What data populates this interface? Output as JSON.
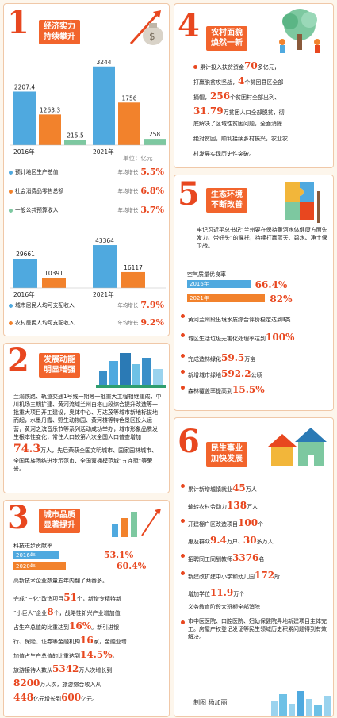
{
  "sections": {
    "s1": {
      "number": "1",
      "title_line1": "经济实力",
      "title_line2": "持续攀升",
      "unit": "单位：亿元",
      "chart_gdp": {
        "type": "bar",
        "categories": [
          "2016年",
          "2021年"
        ],
        "series": [
          {
            "values": [
              2207.4,
              3244
            ],
            "color": "#4fa9df"
          },
          {
            "values": [
              1263.3,
              1756
            ],
            "color": "#f2822c"
          },
          {
            "values": [
              215.5,
              258
            ],
            "color": "#7dc8a0"
          }
        ],
        "labels": [
          [
            "2207.4",
            "1263.3",
            "215.5"
          ],
          [
            "3244",
            "1756",
            "258"
          ]
        ]
      },
      "metrics": [
        {
          "label": "预计地区生产总值",
          "growth": "年均增长",
          "value": "5.5%",
          "color": "#4fa9df"
        },
        {
          "label": "社会消费品零售总额",
          "growth": "年均增长",
          "value": "6.8%",
          "color": "#f2822c"
        },
        {
          "label": "一般公共预算收入",
          "growth": "年均增长",
          "value": "3.7%",
          "color": "#7dc8a0"
        }
      ],
      "chart_income": {
        "type": "bar",
        "categories": [
          "2016年",
          "2021年"
        ],
        "series": [
          {
            "values": [
              29661,
              43364
            ],
            "color": "#4fa9df"
          },
          {
            "values": [
              10391,
              16117
            ],
            "color": "#f2822c"
          }
        ],
        "labels": [
          [
            "29661",
            "10391"
          ],
          [
            "43364",
            "16117"
          ]
        ]
      },
      "metrics2": [
        {
          "label": "城市居民人均可支配收入",
          "growth": "年均增长",
          "value": "7.9%",
          "color": "#4fa9df"
        },
        {
          "label": "农村居民人均可支配收入",
          "growth": "年均增长",
          "value": "9.2%",
          "color": "#f2822c"
        }
      ]
    },
    "s2": {
      "number": "2",
      "title_line1": "发展动能",
      "title_line2": "明显增强",
      "text_a": "兰渝铁路、轨道交通1号线一期等一批重大工程相继建成，中川机场三期扩建、黄河流域兰州白塔山段综合提升改造等一批重大项目开工建设，奥体中心、万达茂等城市新地标拔地而起，水墨丹霞、野生动物园、黄河楼等特色景区投入运营，黄河之滨音乐节等系列活动成功举办，城市形象品质发生根本性变化，常住人口较第六次全国人口普查增加",
      "big": "74.3",
      "text_b": "万人，先后荣获全国文明城市、国家园林城市、全国民族团结进步示范市、全国双拥模范城“五连冠”等荣誉。"
    },
    "s3": {
      "number": "3",
      "title_line1": "城市品质",
      "title_line2": "显著提升",
      "bar_title": "科技进步贡献率",
      "bars": [
        {
          "year": "2016年",
          "value": "53.1%",
          "pct": 53.1,
          "color": "#4fa9df"
        },
        {
          "year": "2020年",
          "value": "60.4%",
          "pct": 60.4,
          "color": "#f2822c"
        }
      ],
      "lines": [
        [
          "高新技术企业数量五年内翻了两番多。"
        ],
        [
          "完成“三化”改造项目",
          "51",
          "个，新增专精特新"
        ],
        [
          "“小巨人”企业",
          "8",
          "个，战略性新兴产业增加值"
        ],
        [
          "占生产总值的比重达到",
          "16%",
          "。新引进银"
        ],
        [
          "行、保险、证券等金融机构",
          "16",
          "家，金融业增"
        ],
        [
          "加值占生产总值的比重达到",
          "14.5%",
          "。"
        ],
        [
          "旅游接待人数从",
          "5342",
          "万人次增长到"
        ],
        [
          "",
          "8200",
          "万人次，旅游综合收入从"
        ],
        [
          "",
          "448",
          "亿元增长到",
          "600",
          "亿元。"
        ]
      ]
    },
    "s4": {
      "number": "4",
      "title_line1": "农村面貌",
      "title_line2": "焕然一新",
      "lines": [
        [
          "累计投入扶贫资金",
          "70",
          "多亿元，"
        ],
        [
          "打赢脱贫攻坚战，",
          "4",
          "个贫困县区全部"
        ],
        [
          "摘帽，",
          "256",
          "个贫困村全部出列、"
        ],
        [
          "",
          "31.79",
          "万贫困人口全部脱贫，彻"
        ],
        [
          "底解决了区域性贫困问题，全面消除"
        ],
        [
          "绝对贫困，顺利接续乡村振兴，农业农"
        ],
        [
          "村发展实现历史性突破。"
        ]
      ]
    },
    "s5": {
      "number": "5",
      "title_line1": "生态环境",
      "title_line2": "不断改善",
      "intro": "牢记习近平总书记“兰州要在保持黄河水体健康方面先发力、带好头”的嘱托，持续打赢蓝天、碧水、净土保卫战。",
      "air_title": "空气质量优良率",
      "air": [
        {
          "year": "2016年",
          "value": "66.4%",
          "pct": 66.4,
          "color": "#4fa9df"
        },
        {
          "year": "2021年",
          "value": "82%",
          "pct": 82,
          "color": "#f2822c"
        }
      ],
      "items": [
        [
          "黄河兰州段出境水质综合评价",
          "",
          "稳定达到Ⅱ类"
        ],
        [
          "城区生活垃圾无害化处理率",
          "",
          "达到",
          "100%"
        ],
        [
          "完成造林绿化",
          "59.5",
          "万亩"
        ],
        [
          "新增城市绿地",
          "592.2",
          "公顷"
        ],
        [
          "森林覆盖率提高到",
          "15.5%"
        ]
      ]
    },
    "s6": {
      "number": "6",
      "title_line1": "民生事业",
      "title_line2": "加快发展",
      "items": [
        [
          "累计新增城镇就业",
          "45",
          "万人"
        ],
        [
          "输转农村劳动力",
          "138",
          "万人"
        ],
        [
          "开建棚户区改造项目",
          "100",
          "个"
        ],
        [
          "惠及群众",
          "9.4",
          "万户、",
          "30",
          "多万人"
        ],
        [
          "招聘同工同酬教师",
          "3376",
          "名"
        ],
        [
          "新建改扩建中小学和幼儿园",
          "172",
          "所"
        ],
        [
          "增加学位",
          "11.9",
          "万个"
        ],
        [
          "义务教育阶段大班额全部消除"
        ],
        [
          "市中医医院、口腔医院、妇幼保健院异地新建项目主体完工。房屋产权登记发证等民生领域历史积累问题得到有效解决。"
        ]
      ],
      "credit": "制图 杨加丽"
    }
  }
}
